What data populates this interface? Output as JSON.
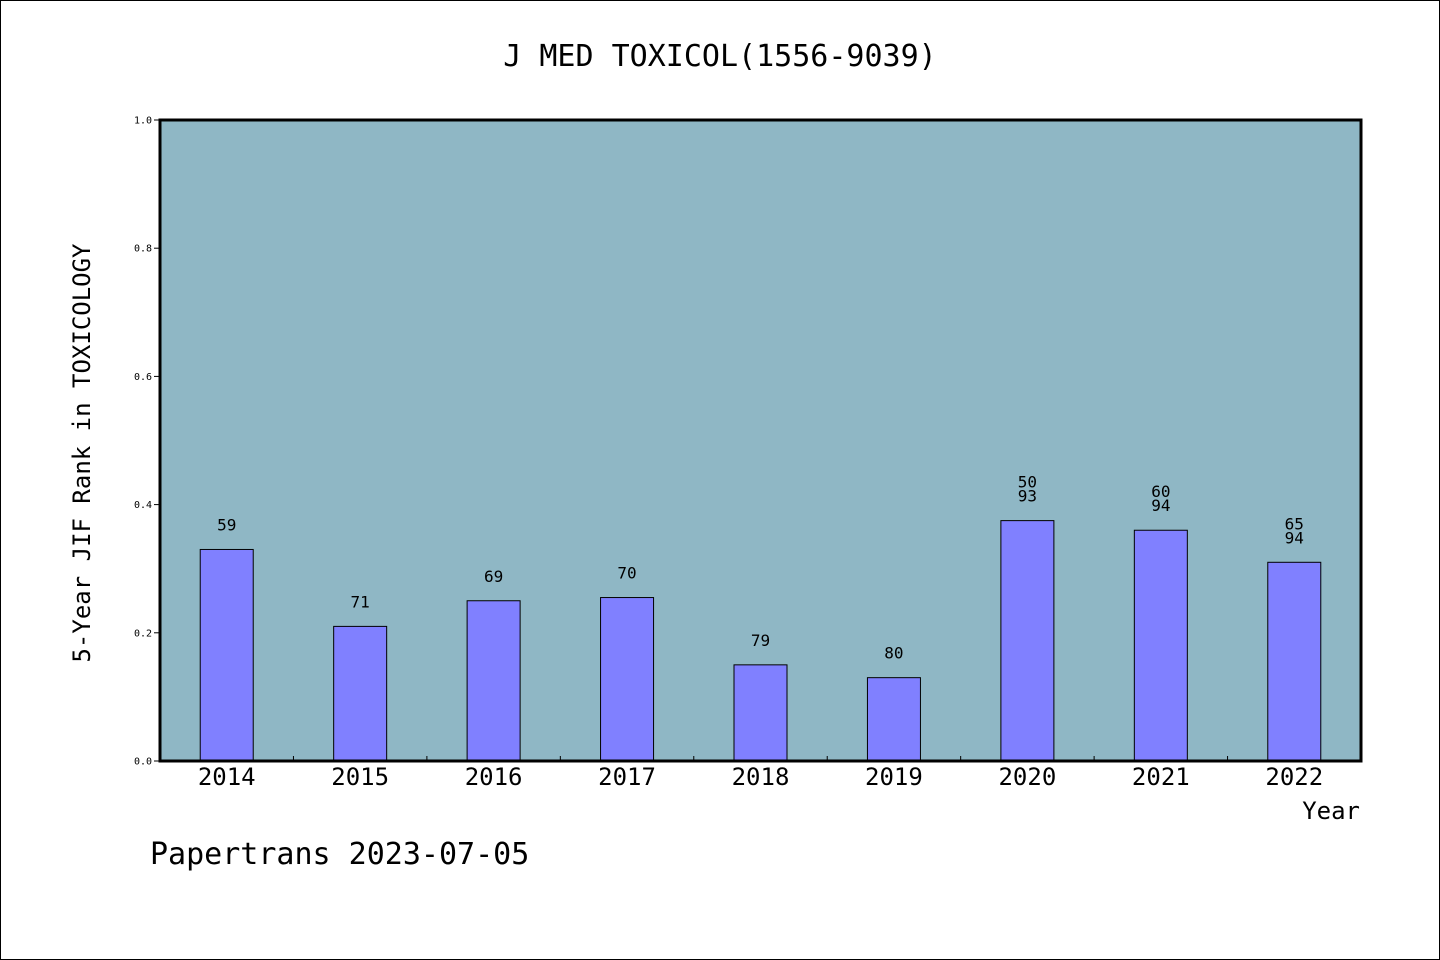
{
  "chart_data": {
    "type": "bar",
    "title": "J MED TOXICOL(1556-9039)",
    "xlabel": "Year",
    "ylabel": "5-Year JIF Rank in TOXICOLOGY",
    "ylim": [
      0,
      1.0
    ],
    "yticks": [
      "0.0",
      "0.2",
      "0.4",
      "0.6",
      "0.8",
      "1.0"
    ],
    "grid": false,
    "colors": {
      "plot_bg": "#8fb7c5",
      "bar": "#8080ff"
    },
    "categories": [
      "2014",
      "2015",
      "2016",
      "2017",
      "2018",
      "2019",
      "2020",
      "2021",
      "2022"
    ],
    "values": [
      0.33,
      0.21,
      0.25,
      0.255,
      0.15,
      0.13,
      0.375,
      0.36,
      0.31
    ],
    "labels": [
      [
        "59"
      ],
      [
        "71"
      ],
      [
        "69"
      ],
      [
        "70"
      ],
      [
        "79"
      ],
      [
        "80"
      ],
      [
        "50",
        "93"
      ],
      [
        "60",
        "94"
      ],
      [
        "65",
        "94"
      ]
    ]
  },
  "footer": "Papertrans 2023-07-05"
}
